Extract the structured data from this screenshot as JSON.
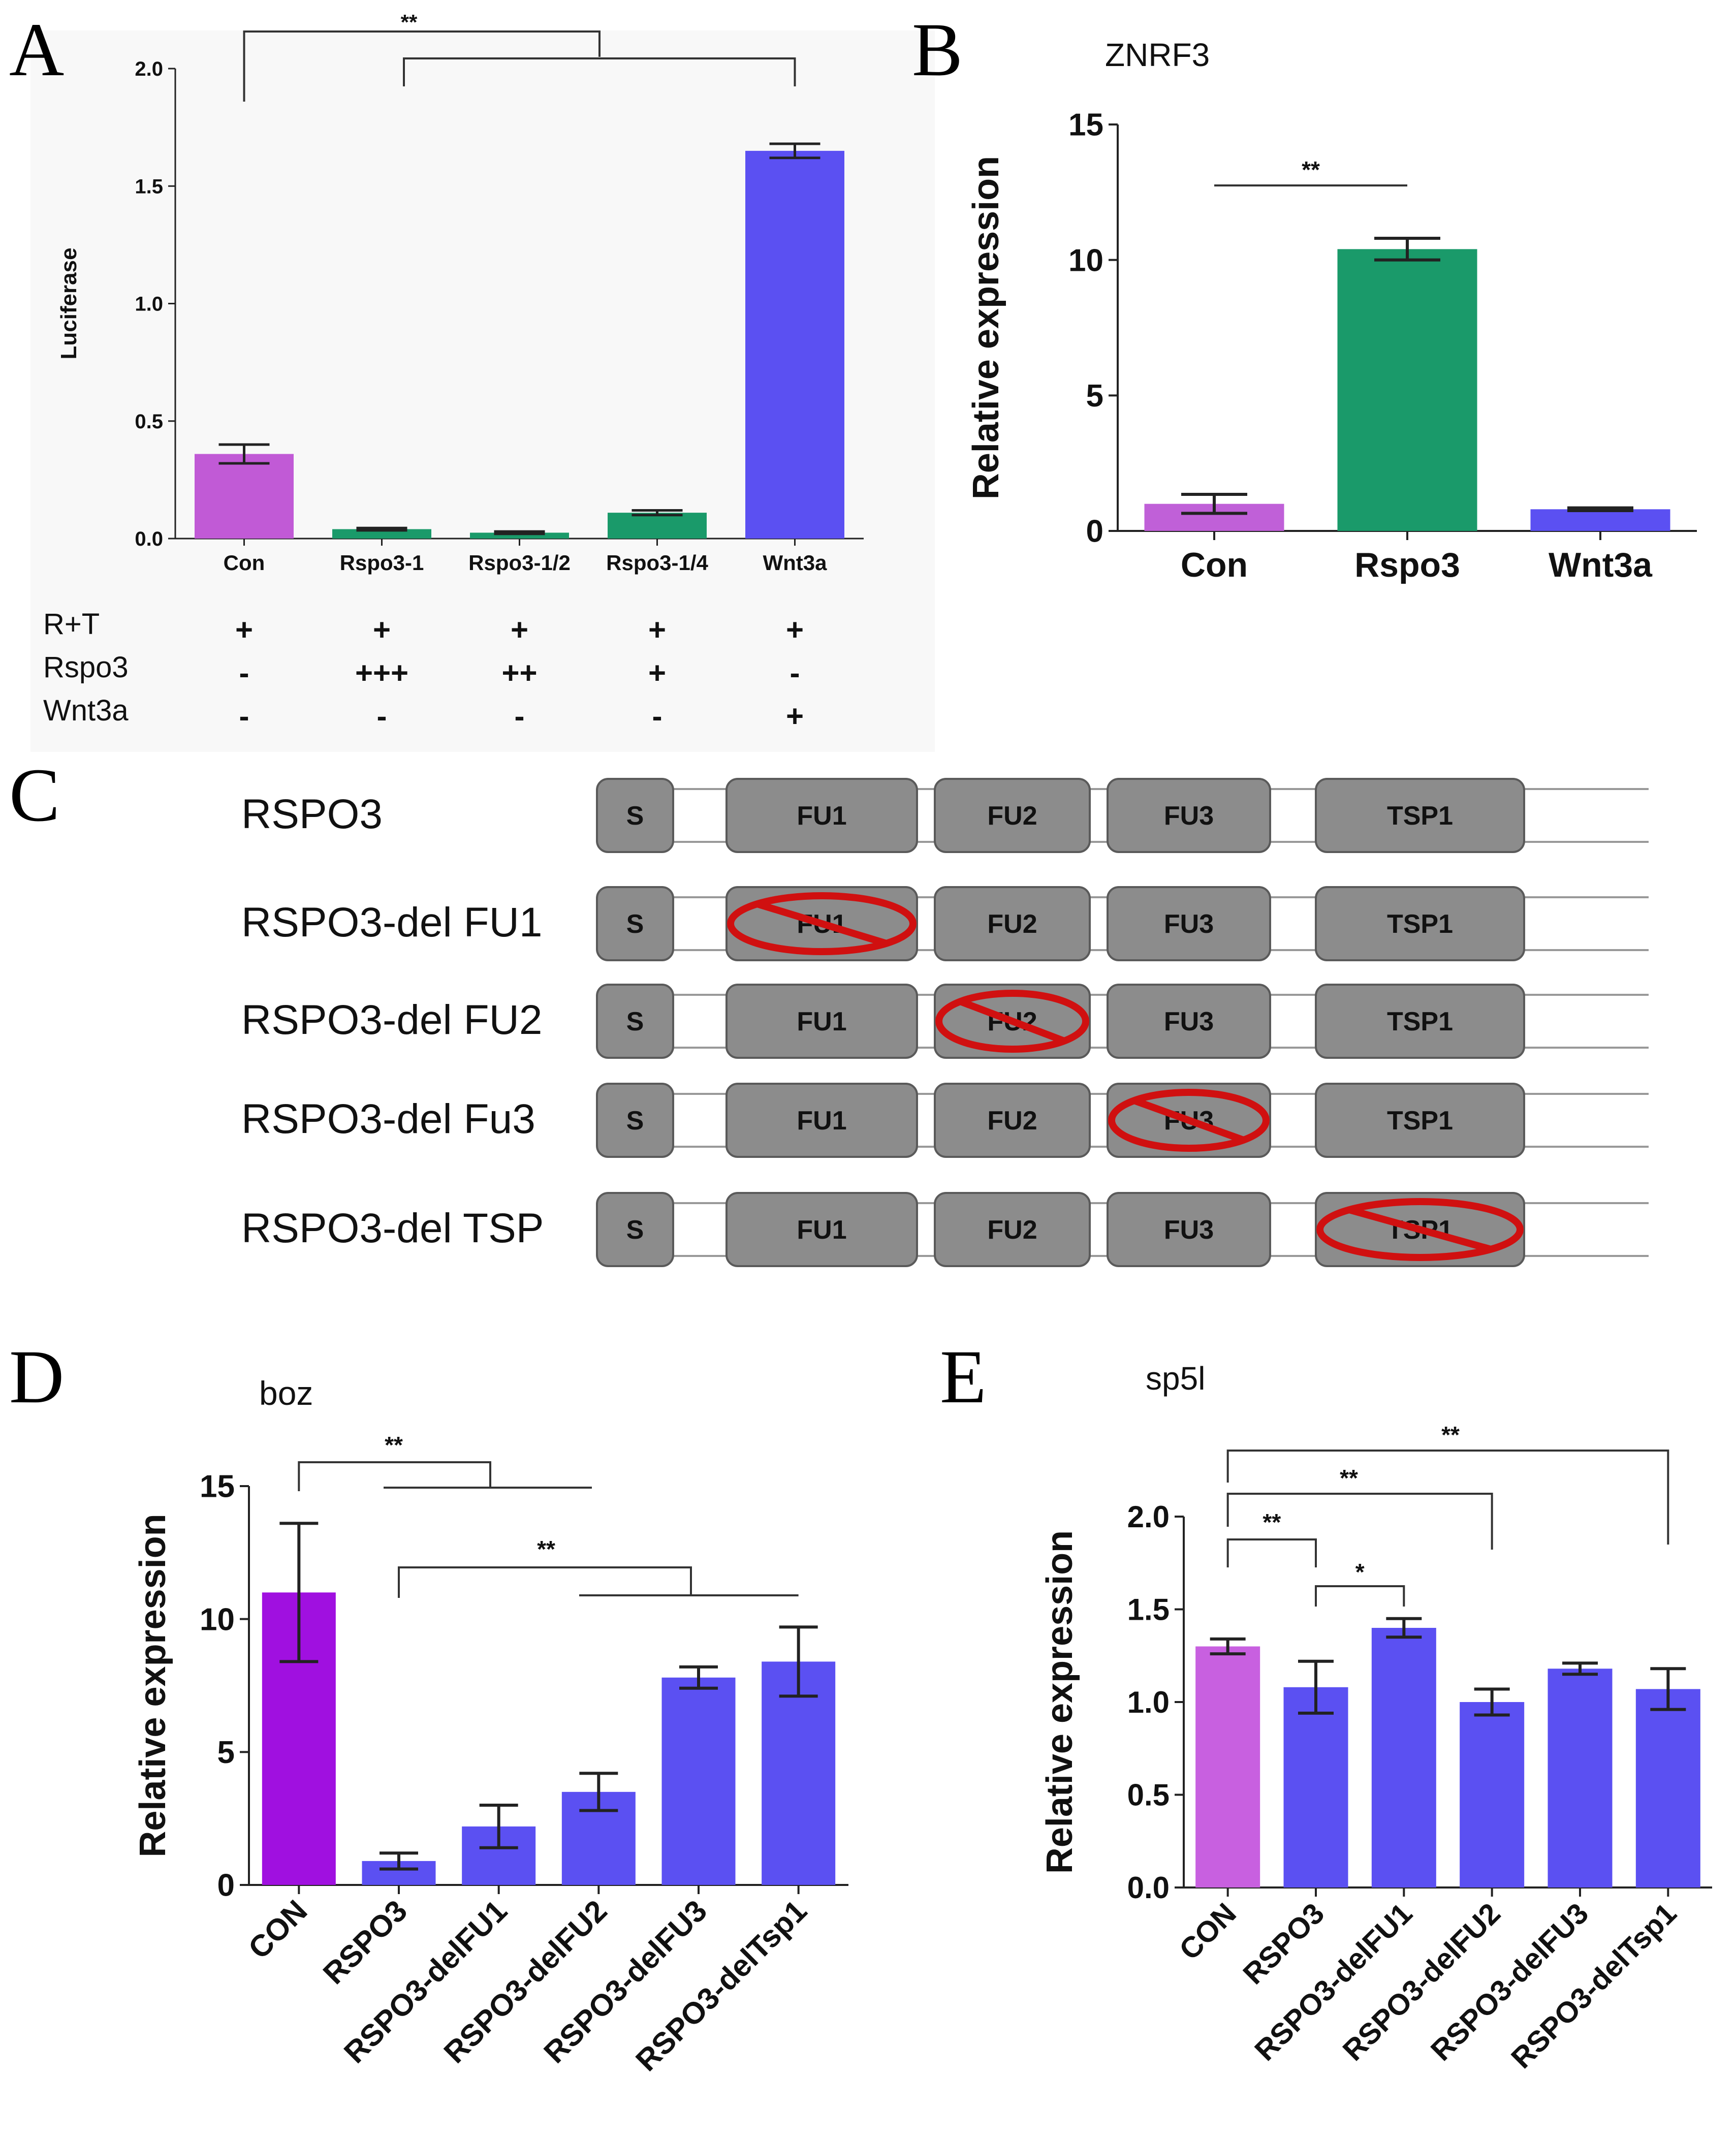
{
  "colors": {
    "purple_a": "#c15ad6",
    "green": "#1a9a6a",
    "blue": "#5b50f2",
    "purple_b": "#c060d8",
    "purple_d": "#a010e0",
    "purple_e": "#c860e0",
    "domain_fill": "#8c8c8c",
    "domain_stroke": "#5a5a5a",
    "delete_mark": "#d01010",
    "axis": "#222222",
    "text": "#111111",
    "panelA_bg": "#f8f8f8"
  },
  "panels": {
    "A": {
      "letter": "A"
    },
    "B": {
      "letter": "B"
    },
    "C": {
      "letter": "C"
    },
    "D": {
      "letter": "D"
    },
    "E": {
      "letter": "E"
    }
  },
  "chart_data": [
    {
      "panel": "A",
      "type": "bar",
      "title": "",
      "xlabel": "",
      "ylabel": "Luciferase",
      "ylim": [
        0,
        2.0
      ],
      "yticks": [
        "0.0",
        "0.5",
        "1.0",
        "1.5",
        "2.0"
      ],
      "categories": [
        "Con",
        "Rspo3-1",
        "Rspo3-1/2",
        "Rspo3-1/4",
        "Wnt3a"
      ],
      "values": [
        0.36,
        0.04,
        0.025,
        0.11,
        1.65
      ],
      "errors": [
        0.04,
        0.005,
        0.005,
        0.01,
        0.03
      ],
      "bar_colors": [
        "purple_a",
        "green",
        "green",
        "green",
        "blue"
      ],
      "significance": [
        {
          "label": "**",
          "between": "Con vs. Rspo3-1 … Wnt3a"
        }
      ],
      "treatment_table": {
        "rows": [
          {
            "label": "R+T",
            "values": [
              "+",
              "+",
              "+",
              "+",
              "+"
            ]
          },
          {
            "label": "Rspo3",
            "values": [
              "-",
              "+++",
              "++",
              "+",
              "-"
            ]
          },
          {
            "label": "Wnt3a",
            "values": [
              "-",
              "-",
              "-",
              "-",
              "+"
            ]
          }
        ]
      }
    },
    {
      "panel": "B",
      "type": "bar",
      "title": "ZNRF3",
      "xlabel": "",
      "ylabel": "Relative expression",
      "ylim": [
        0,
        15
      ],
      "yticks": [
        "0",
        "5",
        "10",
        "15"
      ],
      "categories": [
        "Con",
        "Rspo3",
        "Wnt3a"
      ],
      "values": [
        1.0,
        10.4,
        0.8
      ],
      "errors": [
        0.35,
        0.4,
        0.05
      ],
      "bar_colors": [
        "purple_b",
        "green",
        "blue"
      ],
      "significance": [
        {
          "label": "**",
          "between": "Con vs. Rspo3"
        }
      ]
    },
    {
      "panel": "D",
      "type": "bar",
      "title": "boz",
      "xlabel": "",
      "ylabel": "Relative expression",
      "ylim": [
        0,
        15
      ],
      "yticks": [
        "0",
        "5",
        "10",
        "15"
      ],
      "categories": [
        "CON",
        "RSPO3",
        "RSPO3-delFU1",
        "RSPO3-delFU2",
        "RSPO3-delFU3",
        "RSPO3-delTsp1"
      ],
      "values": [
        11.0,
        0.9,
        2.2,
        3.5,
        7.8,
        8.4
      ],
      "errors": [
        2.6,
        0.3,
        0.8,
        0.7,
        0.4,
        1.3
      ],
      "bar_colors": [
        "purple_d",
        "blue",
        "blue",
        "blue",
        "blue",
        "blue"
      ],
      "significance": [
        {
          "label": "**",
          "between": "CON vs. RSPO3, RSPO3-delFU1, RSPO3-delFU2"
        },
        {
          "label": "**",
          "between": "RSPO3 vs. RSPO3-delFU3, RSPO3-delTsp1"
        }
      ]
    },
    {
      "panel": "E",
      "type": "bar",
      "title": "sp5l",
      "xlabel": "",
      "ylabel": "Relative expression",
      "ylim": [
        0,
        2.0
      ],
      "yticks": [
        "0.0",
        "0.5",
        "1.0",
        "1.5",
        "2.0"
      ],
      "categories": [
        "CON",
        "RSPO3",
        "RSPO3-delFU1",
        "RSPO3-delFU2",
        "RSPO3-delFU3",
        "RSPO3-delTsp1"
      ],
      "values": [
        1.3,
        1.08,
        1.4,
        1.0,
        1.18,
        1.07
      ],
      "errors": [
        0.04,
        0.14,
        0.05,
        0.07,
        0.03,
        0.11
      ],
      "bar_colors": [
        "purple_e",
        "blue",
        "blue",
        "blue",
        "blue",
        "blue"
      ],
      "significance": [
        {
          "label": "**",
          "between": "CON vs. RSPO3-delTsp1"
        },
        {
          "label": "**",
          "between": "CON vs. RSPO3-delFU2"
        },
        {
          "label": "**",
          "between": "CON vs. RSPO3"
        },
        {
          "label": "*",
          "between": "RSPO3 vs. RSPO3-delFU1"
        }
      ]
    }
  ],
  "domains": {
    "rows": [
      {
        "name": "RSPO3",
        "boxes": [
          "S",
          "FU1",
          "FU2",
          "FU3",
          "TSP1"
        ],
        "deleted": -1
      },
      {
        "name": "RSPO3-del FU1",
        "boxes": [
          "S",
          "FU1",
          "FU2",
          "FU3",
          "TSP1"
        ],
        "deleted": 1
      },
      {
        "name": "RSPO3-del FU2",
        "boxes": [
          "S",
          "FU1",
          "FU2",
          "FU3",
          "TSP1"
        ],
        "deleted": 2
      },
      {
        "name": "RSPO3-del Fu3",
        "boxes": [
          "S",
          "FU1",
          "FU2",
          "FU3",
          "TSP1"
        ],
        "deleted": 3
      },
      {
        "name": "RSPO3-del TSP",
        "boxes": [
          "S",
          "FU1",
          "FU2",
          "FU3",
          "TSP1"
        ],
        "deleted": 4
      }
    ]
  }
}
